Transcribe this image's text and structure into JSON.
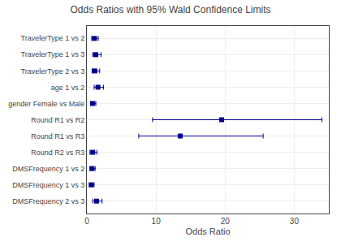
{
  "chart_data": {
    "type": "scatter",
    "title": "Odds Ratios with 95% Wald Confidence Limits",
    "xlabel": "Odds Ratio",
    "categories": [
      "TravelerType 1 vs 2",
      "TravelerType 1 vs 3",
      "TravelerType 2 vs 3",
      "age 1 vs 2",
      "gender Female vs Male",
      "Round R1 vs R2",
      "Round R1 vs R3",
      "Round R2 vs R3",
      "DMSFrequency 1 vs 2",
      "DMSFrequency 1 vs 3",
      "DMSFrequency 2 vs 3"
    ],
    "values": [
      1.1,
      1.3,
      1.15,
      1.6,
      0.85,
      19.5,
      13.5,
      0.85,
      0.75,
      0.65,
      1.4
    ],
    "ci_low": [
      0.7,
      0.85,
      0.75,
      1.05,
      0.55,
      9.5,
      7.5,
      0.45,
      0.45,
      0.35,
      0.85
    ],
    "ci_high": [
      1.65,
      2.05,
      1.85,
      2.4,
      1.3,
      34.0,
      25.5,
      1.45,
      1.2,
      1.05,
      2.2
    ],
    "color": "#00008B",
    "marker": "square",
    "xlim": [
      0,
      35
    ],
    "xticks": [
      0,
      10,
      20,
      30
    ],
    "grid": true
  }
}
